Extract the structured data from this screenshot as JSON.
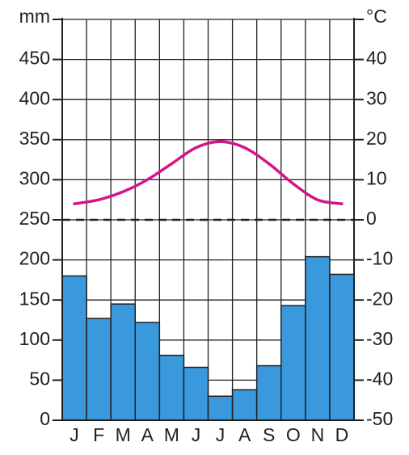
{
  "chart_data": {
    "type": "climograph",
    "categories": [
      "J",
      "F",
      "M",
      "A",
      "M",
      "J",
      "J",
      "A",
      "S",
      "O",
      "N",
      "D"
    ],
    "series": [
      {
        "type": "bar",
        "color": "#3a99dc",
        "values": [
          180,
          127,
          145,
          122,
          81,
          66,
          30,
          38,
          68,
          143,
          204,
          182
        ]
      },
      {
        "type": "line",
        "axis": "y2",
        "color": "#d4148c",
        "values": [
          4,
          5,
          7,
          10,
          14,
          18,
          19.5,
          18,
          14,
          9,
          5,
          4
        ]
      }
    ],
    "y_label": "mm",
    "y2_label": "°C",
    "ylim": [
      0,
      500
    ],
    "yticks": [
      0,
      50,
      100,
      150,
      200,
      250,
      300,
      350,
      400,
      450
    ],
    "y2lim": [
      -50,
      50
    ],
    "y2ticks": [
      -50,
      -40,
      -30,
      -20,
      -10,
      0,
      10,
      20,
      30,
      40
    ],
    "zero_line": true,
    "grid": true
  }
}
